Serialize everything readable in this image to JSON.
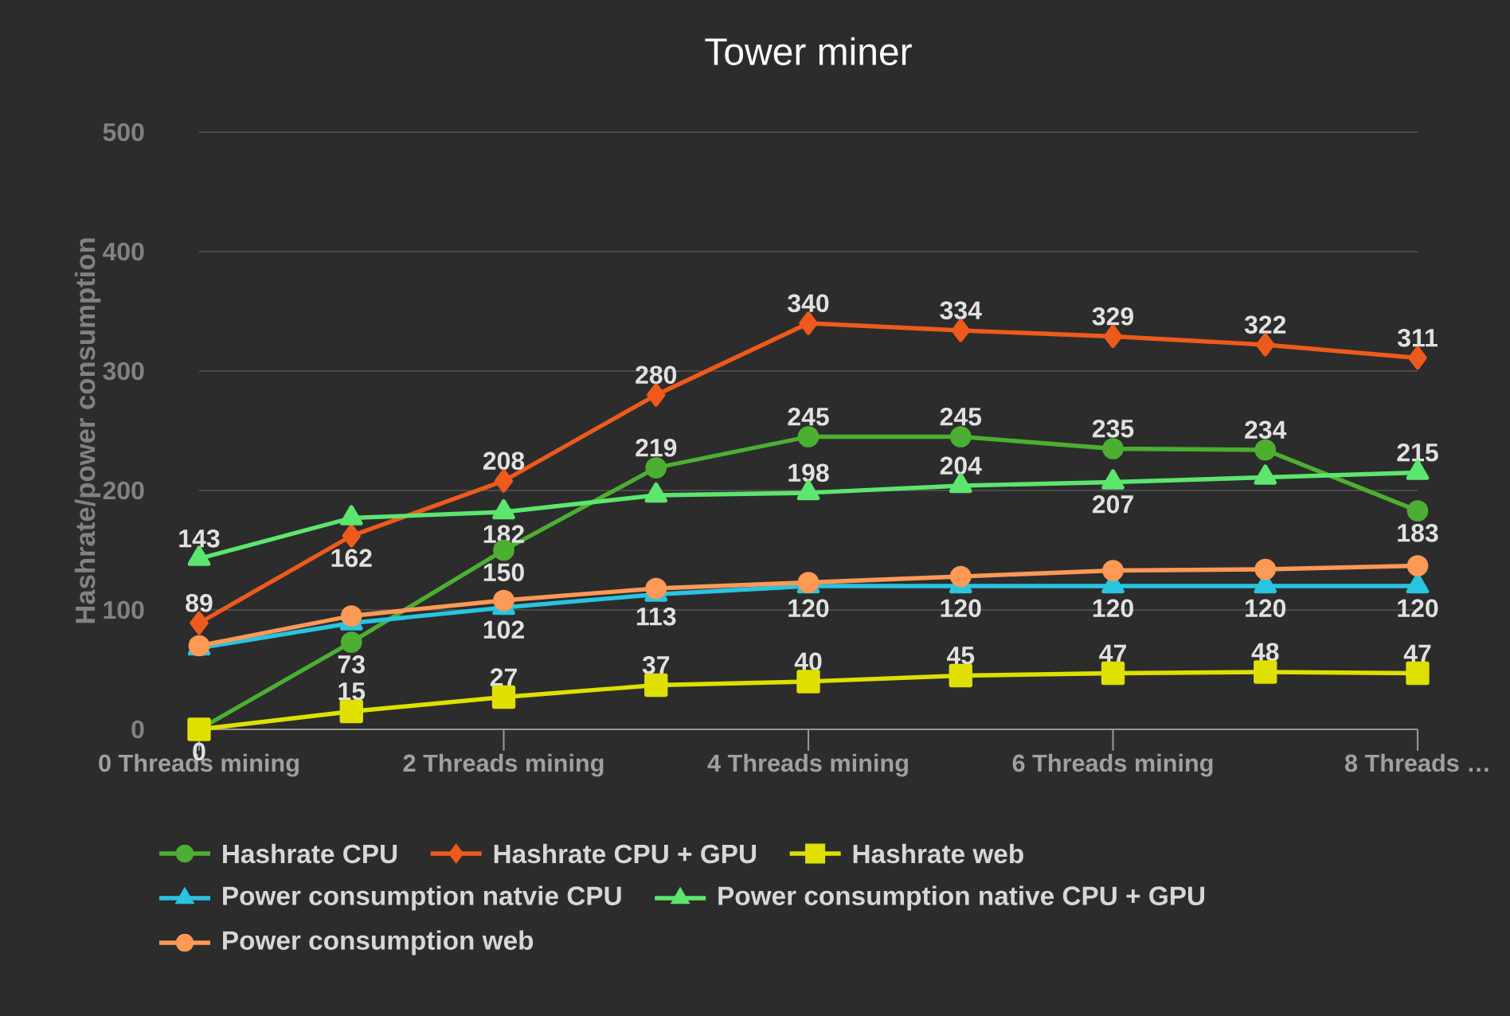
{
  "chart_data": {
    "type": "line",
    "title": "Tower miner",
    "ylabel": "Hashrate/power consumption",
    "categories": [
      "0 Threads mining",
      null,
      "2 Threads mining",
      null,
      "4 Threads mining",
      null,
      "6 Threads mining",
      null,
      "8 Threads …"
    ],
    "ylim": [
      0,
      500
    ],
    "yticks": [
      0,
      100,
      200,
      300,
      400,
      500
    ],
    "grid": "y",
    "legend": "bottom",
    "series": [
      {
        "name": "Hashrate CPU",
        "color": "#4caf32",
        "marker": "circle",
        "values": [
          0,
          73,
          150,
          219,
          245,
          245,
          235,
          234,
          183
        ],
        "value_labels": [
          null,
          "73",
          "150",
          "219",
          "245",
          "245",
          "235",
          "234",
          "183"
        ]
      },
      {
        "name": "Hashrate CPU + GPU",
        "color": "#ee5a1c",
        "marker": "diamond",
        "values": [
          89,
          162,
          208,
          280,
          340,
          334,
          329,
          322,
          311
        ],
        "value_labels": [
          "89",
          "162",
          "208",
          "280",
          "340",
          "334",
          "329",
          "322",
          "311"
        ]
      },
      {
        "name": "Hashrate web",
        "color": "#dfe000",
        "marker": "square",
        "values": [
          0,
          15,
          27,
          37,
          40,
          45,
          47,
          48,
          47
        ],
        "value_labels": [
          "0",
          "15",
          "27",
          "37",
          "40",
          "45",
          "47",
          "48",
          "47"
        ]
      },
      {
        "name": "Power consumption natvie CPU",
        "color": "#29c4e0",
        "marker": "triangle",
        "values": [
          68,
          89,
          102,
          113,
          120,
          120,
          120,
          120,
          120
        ],
        "value_labels": [
          null,
          null,
          "102",
          "113",
          "120",
          "120",
          "120",
          "120",
          "120"
        ]
      },
      {
        "name": "Power consumption native CPU + GPU",
        "color": "#5ce66e",
        "marker": "triangle",
        "values": [
          143,
          177,
          182,
          196,
          198,
          204,
          207,
          211,
          215
        ],
        "value_labels": [
          "143",
          null,
          "182",
          null,
          "198",
          "204",
          "207",
          null,
          "215"
        ]
      },
      {
        "name": "Power consumption web",
        "color": "#ff9955",
        "marker": "circle",
        "values": [
          70,
          95,
          108,
          118,
          123,
          128,
          133,
          134,
          137
        ]
      }
    ]
  }
}
